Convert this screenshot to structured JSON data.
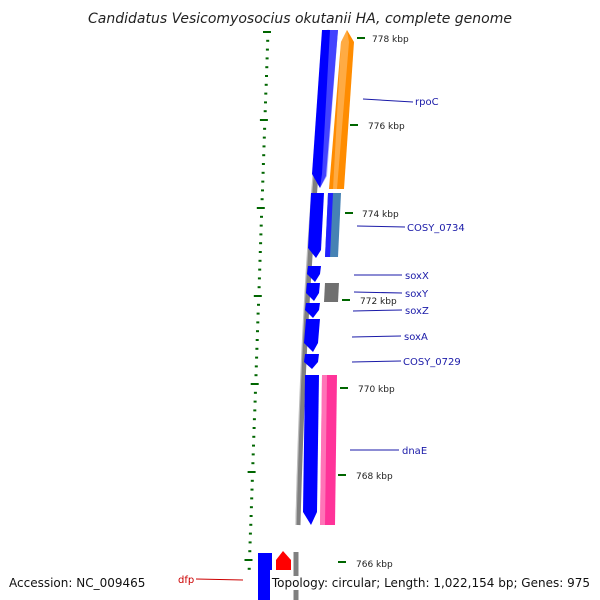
{
  "title": "Candidatus Vesicomyosocius okutanii HA, complete genome",
  "footer": {
    "accession": "Accession: NC_009465",
    "summary": "Topology: circular; Length: 1,022,154 bp; Genes: 975"
  },
  "ticks": [
    "778 kbp",
    "776 kbp",
    "774 kbp",
    "772 kbp",
    "770 kbp",
    "768 kbp",
    "766 kbp"
  ],
  "genes": [
    {
      "label": "rpoC",
      "color": "#1a1aa8"
    },
    {
      "label": "COSY_0734",
      "color": "#1a1aa8"
    },
    {
      "label": "soxX",
      "color": "#1a1aa8"
    },
    {
      "label": "soxY",
      "color": "#1a1aa8"
    },
    {
      "label": "soxZ",
      "color": "#1a1aa8"
    },
    {
      "label": "soxA",
      "color": "#1a1aa8"
    },
    {
      "label": "COSY_0729",
      "color": "#1a1aa8"
    },
    {
      "label": "dnaE",
      "color": "#1a1aa8"
    },
    {
      "label": "dfp",
      "color": "#cc0000"
    }
  ],
  "colors": {
    "backbone": "#808080",
    "cds_reverse": "#0000ff",
    "cds_forward_orange": "#ff8c00",
    "cds_forward_steelblue": "#4682b4",
    "cds_forward_gray": "#707070",
    "cds_forward_pink": "#ff3399",
    "cds_red": "#ff0000",
    "tick_green": "#006600"
  }
}
